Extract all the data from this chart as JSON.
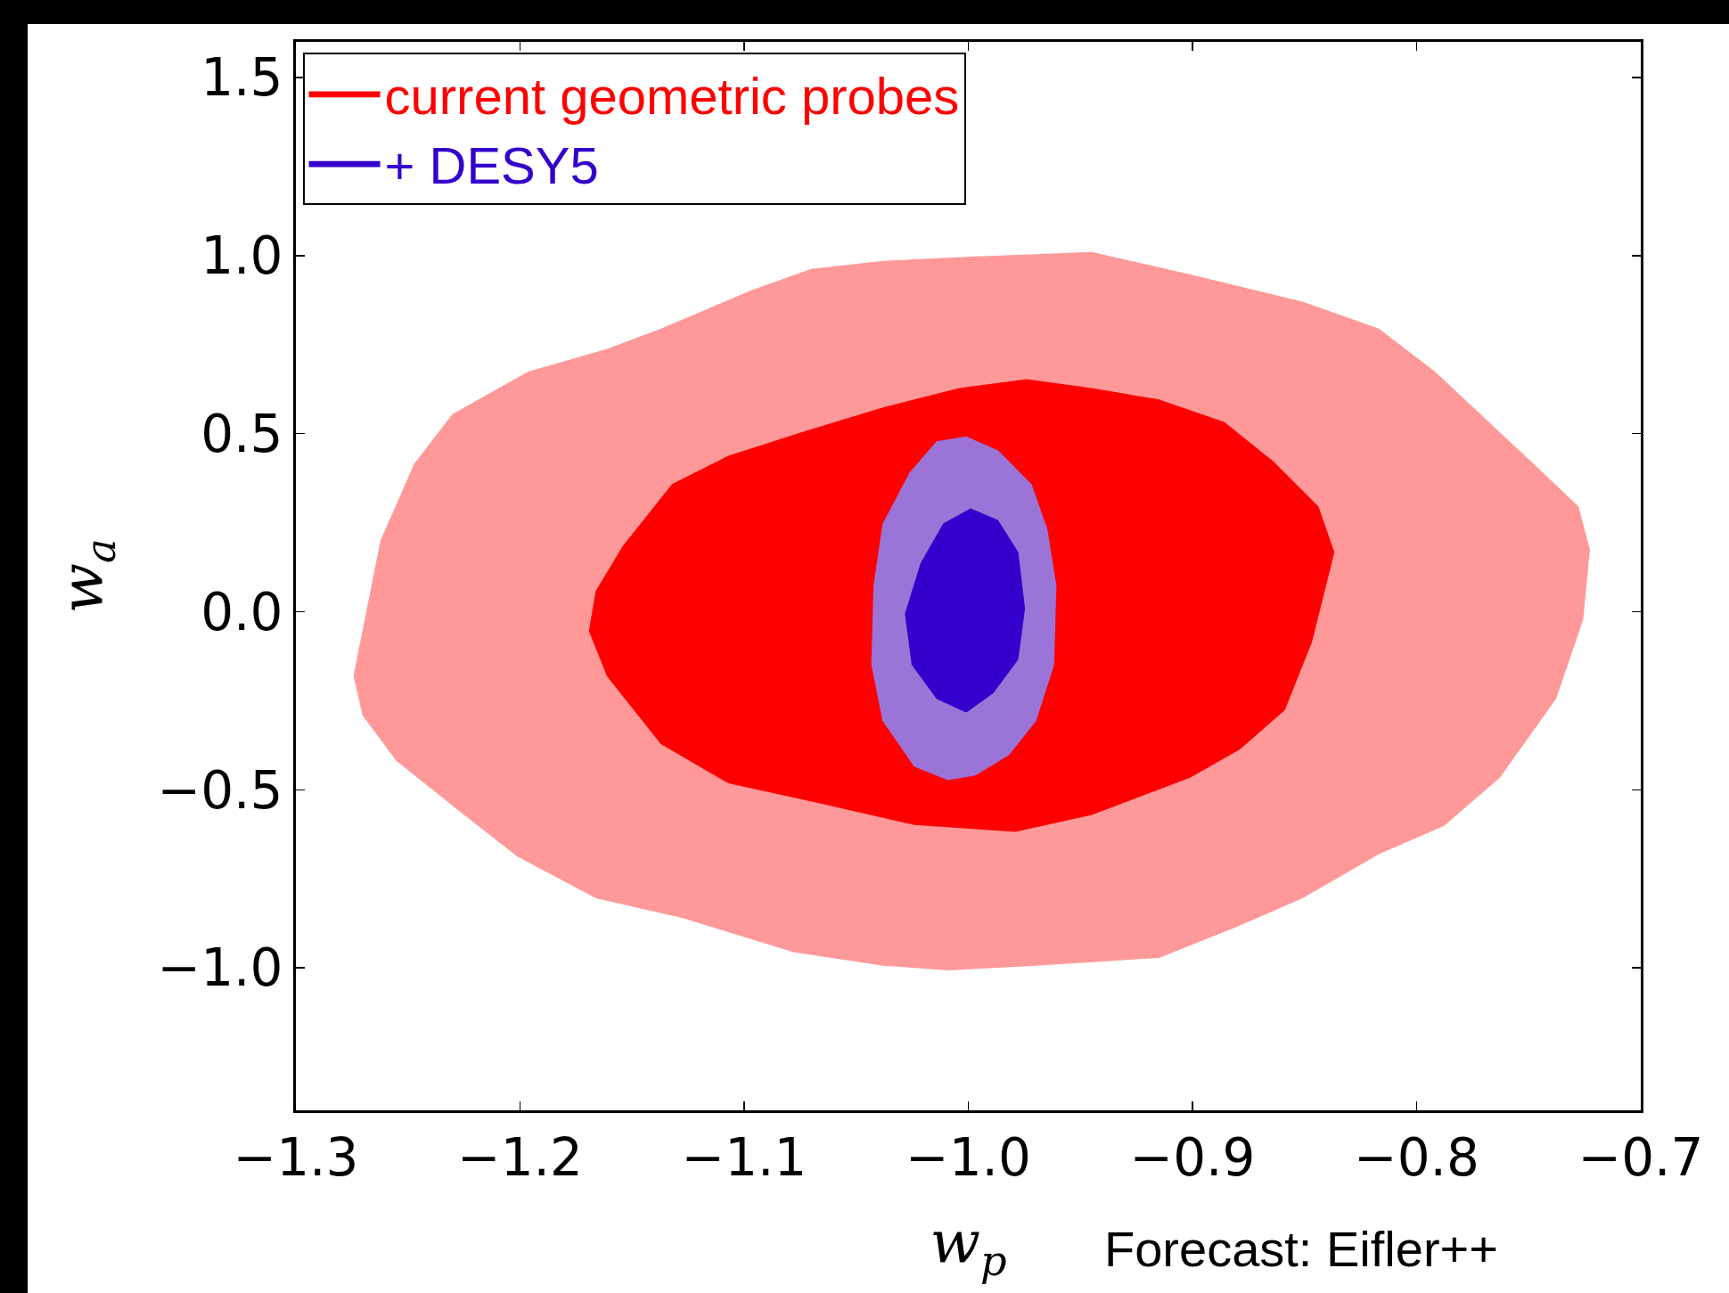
{
  "chart_data": {
    "type": "area",
    "xlabel": "w$_{p}$",
    "ylabel": "w$_{a}$",
    "annotations": [
      "Forecast: Eifler++"
    ],
    "xlim": [
      -1.3,
      -0.7
    ],
    "ylim": [
      -1.4,
      1.6
    ],
    "xticks": [
      {
        "value": -1.3,
        "label": "−1.3"
      },
      {
        "value": -1.2,
        "label": "−1.2"
      },
      {
        "value": -1.1,
        "label": "−1.1"
      },
      {
        "value": -1.0,
        "label": "−1.0"
      },
      {
        "value": -0.9,
        "label": "−0.9"
      },
      {
        "value": -0.8,
        "label": "−0.8"
      },
      {
        "value": -0.7,
        "label": "−0.7"
      }
    ],
    "yticks": [
      {
        "value": -1.0,
        "label": "−1.0"
      },
      {
        "value": -0.5,
        "label": "−0.5"
      },
      {
        "value": 0,
        "label": "0.0"
      },
      {
        "value": 0.5,
        "label": "0.5"
      },
      {
        "value": 1.0,
        "label": "1.0"
      },
      {
        "value": 1.5,
        "label": "1.5"
      }
    ],
    "grid": false,
    "legend": "top left",
    "series": [
      {
        "color": "#ff9999",
        "x": [
          -1.274,
          -1.27,
          -1.255,
          -1.23,
          -1.201,
          -1.166,
          -1.127,
          -1.078,
          -1.038,
          -1.009,
          -0.97,
          -0.915,
          -0.881,
          -0.851,
          -0.817,
          -0.788,
          -0.763,
          -0.738,
          -0.726,
          -0.723,
          -0.728,
          -0.748,
          -0.763,
          -0.792,
          -0.817,
          -0.851,
          -0.901,
          -0.945,
          -0.97,
          -0.999,
          -1.038,
          -1.07,
          -1.097,
          -1.137,
          -1.161,
          -1.196,
          -1.23,
          -1.247,
          -1.262
        ],
        "values": [
          -0.18,
          -0.29,
          -0.417,
          -0.543,
          -0.686,
          -0.803,
          -0.859,
          -0.954,
          -0.992,
          -1.005,
          -0.992,
          -0.97,
          -0.885,
          -0.803,
          -0.679,
          -0.6,
          -0.464,
          -0.243,
          -0.022,
          0.174,
          0.294,
          0.414,
          0.502,
          0.673,
          0.793,
          0.869,
          0.945,
          1.008,
          1.002,
          0.995,
          0.983,
          0.961,
          0.9,
          0.793,
          0.736,
          0.673,
          0.553,
          0.414,
          0.199
        ]
      },
      {
        "name": "current geometric probes",
        "color": "#ff0000",
        "x": [
          -1.169,
          -1.161,
          -1.137,
          -1.107,
          -1.068,
          -1.024,
          -0.979,
          -0.945,
          -0.901,
          -0.879,
          -0.859,
          -0.847,
          -0.837,
          -0.844,
          -0.864,
          -0.886,
          -0.915,
          -0.945,
          -0.974,
          -1.004,
          -1.038,
          -1.073,
          -1.107,
          -1.132,
          -1.154,
          -1.166
        ],
        "values": [
          -0.054,
          -0.18,
          -0.37,
          -0.48,
          -0.534,
          -0.597,
          -0.616,
          -0.569,
          -0.464,
          -0.385,
          -0.275,
          -0.085,
          0.167,
          0.294,
          0.42,
          0.531,
          0.594,
          0.626,
          0.651,
          0.626,
          0.572,
          0.505,
          0.436,
          0.357,
          0.183,
          0.057
        ]
      },
      {
        "color": "#9b74d8",
        "x": [
          -1.009,
          -0.997,
          -0.982,
          -0.97,
          -0.962,
          -0.961,
          -0.965,
          -0.972,
          -0.987,
          -1.001,
          -1.014,
          -1.026,
          -1.038,
          -1.042,
          -1.043,
          -1.038,
          -1.024
        ],
        "values": [
          -0.471,
          -0.458,
          -0.401,
          -0.306,
          -0.148,
          0.073,
          0.231,
          0.357,
          0.452,
          0.49,
          0.477,
          0.389,
          0.246,
          0.073,
          -0.148,
          -0.306,
          -0.433
        ]
      },
      {
        "name": "+ DESY5",
        "color": "#3300cc",
        "x": [
          -1.001,
          -0.989,
          -0.978,
          -0.975,
          -0.978,
          -0.987,
          -0.999,
          -1.011,
          -1.021,
          -1.028,
          -1.025,
          -1.014
        ],
        "values": [
          -0.281,
          -0.227,
          -0.133,
          0.009,
          0.167,
          0.256,
          0.288,
          0.246,
          0.136,
          -0.006,
          -0.148,
          -0.243
        ]
      }
    ]
  }
}
